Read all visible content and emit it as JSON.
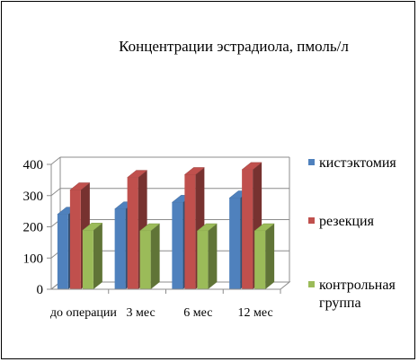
{
  "chart_data": {
    "type": "bar",
    "title": "Концентрации эстрадиола, пмоль/л",
    "xlabel": "",
    "ylabel": "",
    "categories": [
      "до операции",
      "3 мес",
      "6 мес",
      "12 мес"
    ],
    "series": [
      {
        "name": "кистэктомия",
        "values": [
          240,
          257,
          278,
          292
        ],
        "color": "#4f81bd"
      },
      {
        "name": "резекция",
        "values": [
          318,
          358,
          367,
          383
        ],
        "color": "#c0504d"
      },
      {
        "name": "контрольная группа",
        "values": [
          189,
          187,
          187,
          187
        ],
        "color": "#9bbb59"
      }
    ],
    "ylim": [
      0,
      400
    ],
    "yticks": [
      0,
      100,
      200,
      300,
      400
    ],
    "grid": true,
    "legend": "right",
    "legend_lines": [
      [
        "кистэктомия"
      ],
      [
        "резекция"
      ],
      [
        "контрольная",
        "группа"
      ]
    ]
  }
}
